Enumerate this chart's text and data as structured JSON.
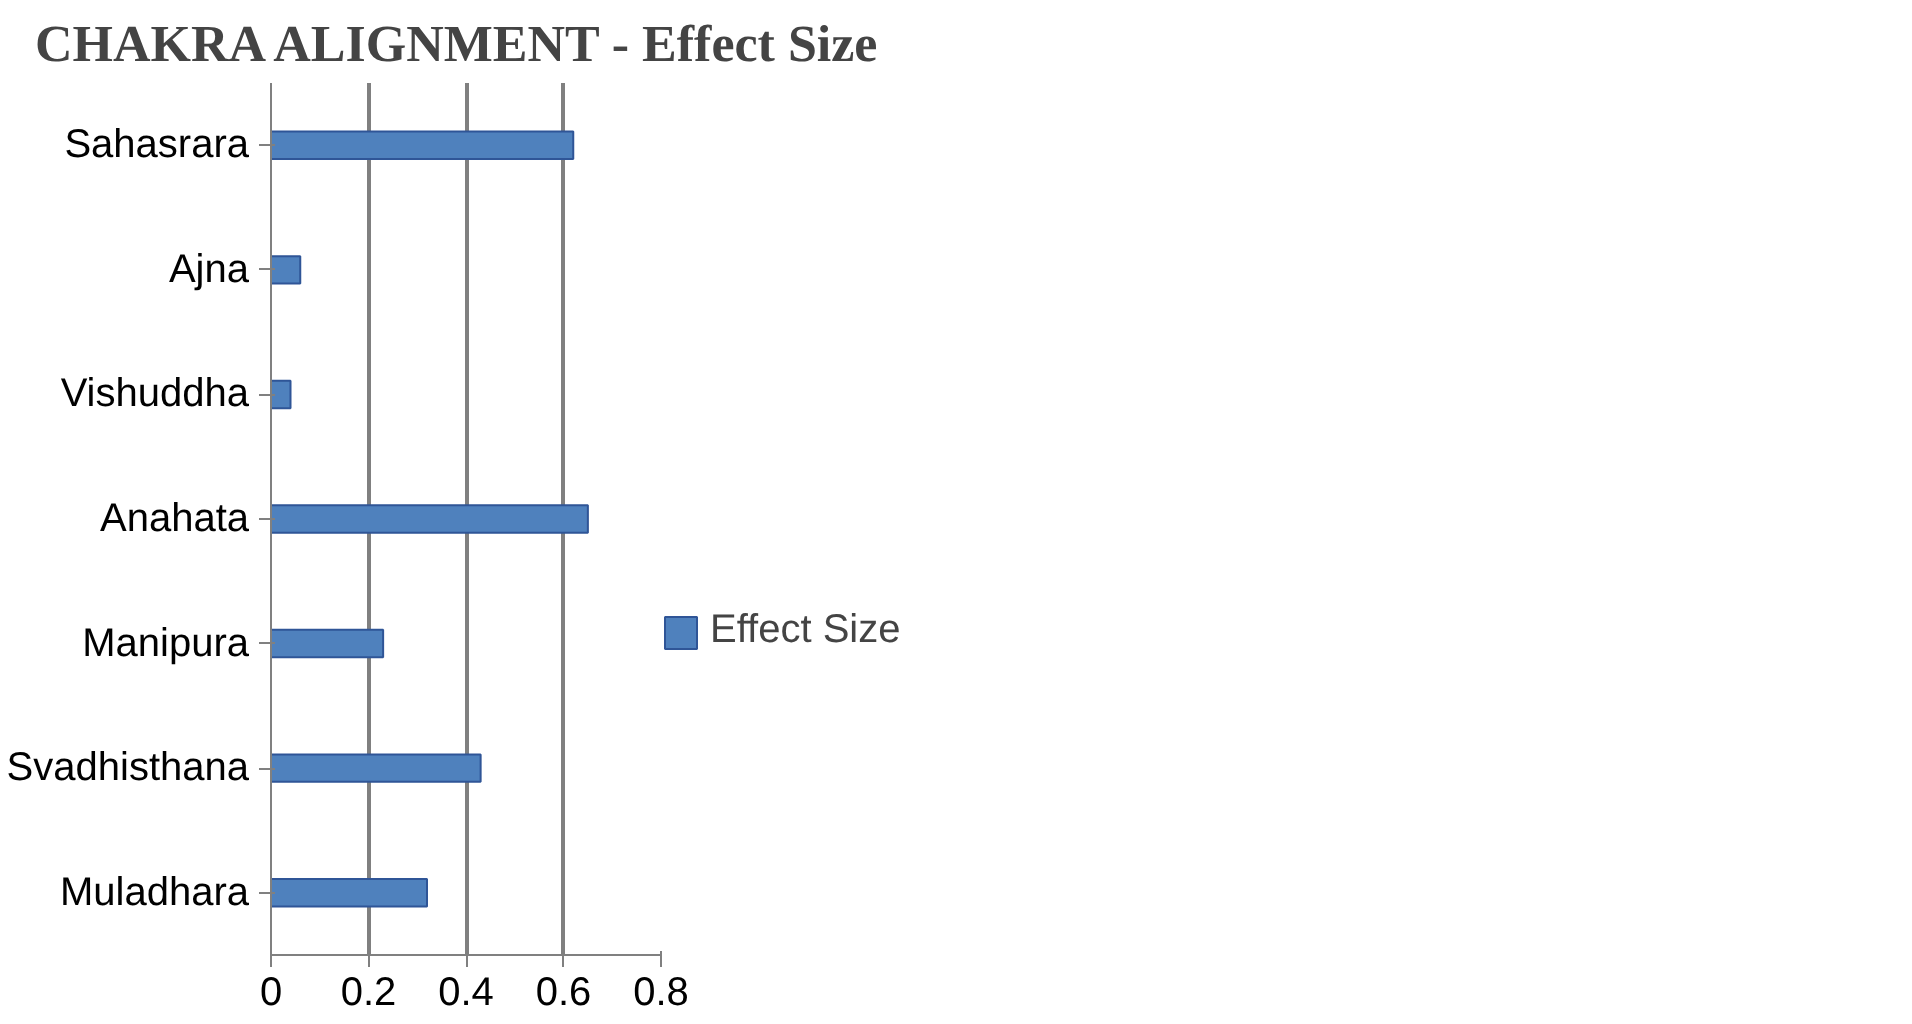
{
  "chart_data": {
    "type": "bar",
    "orientation": "horizontal",
    "title": "CHAKRA  ALIGNMENT - Effect Size",
    "categories": [
      "Sahasrara",
      "Ajna",
      "Vishuddha",
      "Anahata",
      "Manipura",
      "Svadhisthana",
      "Muladhara"
    ],
    "series": [
      {
        "name": "Effect Size",
        "color": "#4f81bd",
        "values": [
          0.62,
          0.06,
          0.04,
          0.65,
          0.23,
          0.43,
          0.32
        ]
      }
    ],
    "xlim": [
      0,
      0.8
    ],
    "xticks": [
      0,
      0.2,
      0.4,
      0.6,
      0.8
    ],
    "grid": "x",
    "legend": "right"
  }
}
